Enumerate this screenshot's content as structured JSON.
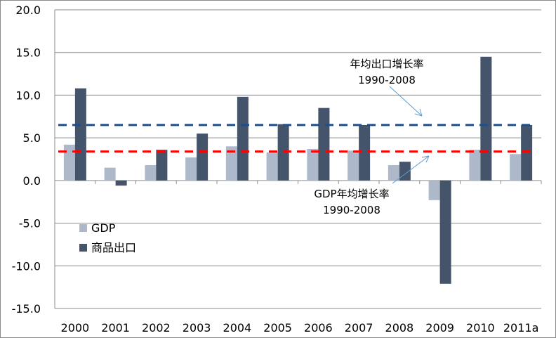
{
  "chart_data": {
    "type": "bar",
    "categories": [
      "2000",
      "2001",
      "2002",
      "2003",
      "2004",
      "2005",
      "2006",
      "2007",
      "2008",
      "2009",
      "2010",
      "2011a"
    ],
    "series": [
      {
        "name": "GDP",
        "color": "#adb9ca",
        "values": [
          4.2,
          1.5,
          1.8,
          2.7,
          4.0,
          3.3,
          3.7,
          3.5,
          1.8,
          -2.3,
          3.6,
          3.1
        ]
      },
      {
        "name": "商品出口",
        "color": "#44546a",
        "values": [
          10.8,
          -0.6,
          3.6,
          5.5,
          9.8,
          6.6,
          8.5,
          6.5,
          2.2,
          -12.1,
          14.5,
          6.5
        ]
      }
    ],
    "reference_lines": [
      {
        "label_line1": "年均出口增长率",
        "label_line2": "1990-2008",
        "value": 6.5,
        "color": "#1f4e8c"
      },
      {
        "label_line1": "GDP年均增长率",
        "label_line2": "1990-2008",
        "value": 3.4,
        "color": "#ff0000"
      }
    ],
    "ylim": [
      -15,
      20
    ],
    "yticks": [
      "20.0",
      "15.0",
      "10.0",
      "5.0",
      "0.0",
      "-5.0",
      "-10.0",
      "-15.0"
    ],
    "ytick_values": [
      20,
      15,
      10,
      5,
      0,
      -5,
      -10,
      -15
    ],
    "grid": true,
    "legend": "bottom-left",
    "title": "",
    "xlabel": "",
    "ylabel": ""
  }
}
